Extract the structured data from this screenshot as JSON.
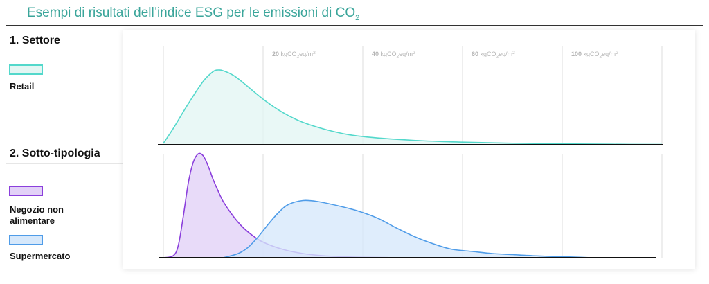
{
  "page": {
    "title_main": "Esempi di risultati dell’indice ESG per le emissioni di CO",
    "title_sub": "2"
  },
  "sections": {
    "settore": {
      "heading": "1. Settore",
      "legend": [
        {
          "label": "Retail",
          "color": "#53d8cb",
          "fill": "#e3f6f3"
        }
      ]
    },
    "sotto_tipologia": {
      "heading": "2. Sotto-tipologia",
      "legend": [
        {
          "label": "Negozio non\nalimentare",
          "color": "#8b3fdc",
          "fill": "#e2d1f7"
        },
        {
          "label": "Supermercato",
          "color": "#4f9ce8",
          "fill": "#d6e8fb"
        }
      ]
    }
  },
  "chart_data": [
    {
      "type": "area",
      "x_ticks": [
        {
          "value": 20,
          "number": "20",
          "unit": " kgCO",
          "unit_sub": "2",
          "unit_tail": "eq/m",
          "unit_sup": "2"
        },
        {
          "value": 40,
          "number": "40",
          "unit": " kgCO",
          "unit_sub": "2",
          "unit_tail": "eq/m",
          "unit_sup": "2"
        },
        {
          "value": 60,
          "number": "60",
          "unit": " kgCO",
          "unit_sub": "2",
          "unit_tail": "eq/m",
          "unit_sup": "2"
        },
        {
          "value": 100,
          "number": "100",
          "unit": " kgCO",
          "unit_sub": "2",
          "unit_tail": "eq/m",
          "unit_sup": "2"
        }
      ],
      "grid": true,
      "series": [
        {
          "name": "Retail",
          "color": "#53d8cb",
          "fill": "#e3f6f3",
          "x": [
            0,
            2,
            5,
            8,
            10,
            11,
            12,
            14,
            16,
            20,
            24,
            28,
            34,
            40,
            50,
            60,
            70,
            80,
            90,
            100
          ],
          "y": [
            0.02,
            0.22,
            0.55,
            0.85,
            0.98,
            1.0,
            0.99,
            0.93,
            0.83,
            0.61,
            0.43,
            0.3,
            0.18,
            0.11,
            0.06,
            0.035,
            0.02,
            0.012,
            0.007,
            0.004
          ]
        }
      ]
    },
    {
      "type": "area",
      "grid": true,
      "series": [
        {
          "name": "Negozio non alimentare",
          "color": "#8b3fdc",
          "fill": "#e2d1f7",
          "x": [
            0,
            2,
            3,
            4,
            5,
            6,
            7,
            8,
            9,
            10,
            11,
            12,
            14,
            16,
            18,
            20,
            24,
            28,
            32,
            36,
            40,
            45
          ],
          "y": [
            0,
            0.02,
            0.12,
            0.4,
            0.72,
            0.92,
            1.0,
            0.98,
            0.88,
            0.75,
            0.64,
            0.54,
            0.4,
            0.29,
            0.21,
            0.15,
            0.08,
            0.04,
            0.02,
            0.01,
            0.005,
            0.002
          ]
        },
        {
          "name": "Supermercato",
          "color": "#4f9ce8",
          "fill": "#d6e8fb",
          "x": [
            12,
            15,
            17,
            19,
            21,
            23,
            25,
            28,
            31,
            35,
            39,
            43,
            47,
            51,
            55,
            58,
            62,
            66,
            70,
            74,
            78,
            82,
            86
          ],
          "y": [
            0.0,
            0.04,
            0.1,
            0.2,
            0.32,
            0.43,
            0.51,
            0.55,
            0.54,
            0.5,
            0.45,
            0.38,
            0.28,
            0.19,
            0.12,
            0.08,
            0.06,
            0.04,
            0.03,
            0.02,
            0.012,
            0.007,
            0.0
          ]
        }
      ]
    }
  ]
}
